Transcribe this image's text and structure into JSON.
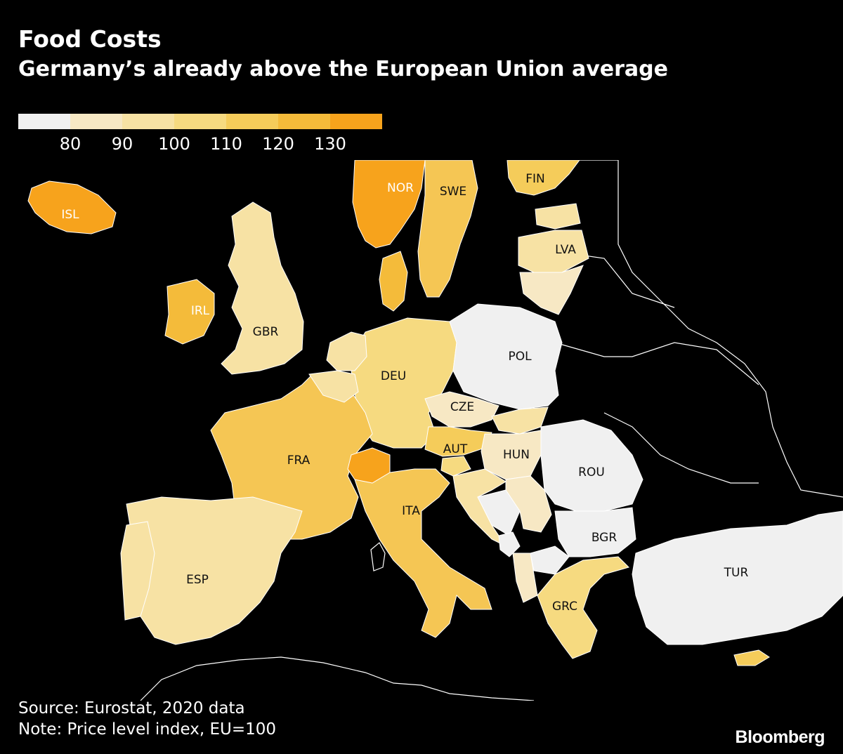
{
  "title": "Food Costs",
  "subtitle": "Germany’s already above the European Union average",
  "legend": {
    "ticks": [
      "80",
      "90",
      "100",
      "110",
      "120",
      "130"
    ],
    "colors": [
      "#f0f0f0",
      "#f7e8c4",
      "#f7e2a4",
      "#f6da80",
      "#f5cc5a",
      "#f4bb3a",
      "#f7a31c"
    ]
  },
  "countries": [
    {
      "code": "ISL",
      "label": "ISL",
      "color": "#f7a31c"
    },
    {
      "code": "NOR",
      "label": "NOR",
      "color": "#f7a31c"
    },
    {
      "code": "SWE",
      "label": "SWE",
      "color": "#f5c654"
    },
    {
      "code": "FIN",
      "label": "FIN",
      "color": "#f5cc5a"
    },
    {
      "code": "LVA",
      "label": "LVA",
      "color": "#f7e2a4"
    },
    {
      "code": "IRL",
      "label": "IRL",
      "color": "#f4bb3a"
    },
    {
      "code": "GBR",
      "label": "GBR",
      "color": "#f7e2a4"
    },
    {
      "code": "DEU",
      "label": "DEU",
      "color": "#f6da80"
    },
    {
      "code": "POL",
      "label": "POL",
      "color": "#f0f0f0"
    },
    {
      "code": "CZE",
      "label": "CZE",
      "color": "#f7e8c4"
    },
    {
      "code": "AUT",
      "label": "AUT",
      "color": "#f5cc5a"
    },
    {
      "code": "HUN",
      "label": "HUN",
      "color": "#f7e8c4"
    },
    {
      "code": "FRA",
      "label": "FRA",
      "color": "#f5c654"
    },
    {
      "code": "ROU",
      "label": "ROU",
      "color": "#f0f0f0"
    },
    {
      "code": "ITA",
      "label": "ITA",
      "color": "#f5c654"
    },
    {
      "code": "BGR",
      "label": "BGR",
      "color": "#f0f0f0"
    },
    {
      "code": "ESP",
      "label": "ESP",
      "color": "#f7e2a4"
    },
    {
      "code": "TUR",
      "label": "TUR",
      "color": "#f0f0f0"
    },
    {
      "code": "GRC",
      "label": "GRC",
      "color": "#f6da80"
    },
    {
      "code": "CHE",
      "label": "",
      "color": "#f7a31c"
    },
    {
      "code": "BEL",
      "label": "",
      "color": "#f7e2a4"
    },
    {
      "code": "NLD",
      "label": "",
      "color": "#f7e2a4"
    },
    {
      "code": "DNK",
      "label": "",
      "color": "#f4bb3a"
    },
    {
      "code": "PRT",
      "label": "",
      "color": "#f7e2a4"
    },
    {
      "code": "LTU",
      "label": "",
      "color": "#f7e8c4"
    },
    {
      "code": "EST",
      "label": "",
      "color": "#f7e2a4"
    },
    {
      "code": "SVK",
      "label": "",
      "color": "#f7e2a4"
    },
    {
      "code": "SVN",
      "label": "",
      "color": "#f6da80"
    },
    {
      "code": "HRV",
      "label": "",
      "color": "#f7e2a4"
    },
    {
      "code": "SRB",
      "label": "",
      "color": "#f7e8c4"
    },
    {
      "code": "BIH",
      "label": "",
      "color": "#f0f0f0"
    },
    {
      "code": "MNE",
      "label": "",
      "color": "#f0f0f0"
    },
    {
      "code": "MKD",
      "label": "",
      "color": "#f0f0f0"
    },
    {
      "code": "ALB",
      "label": "",
      "color": "#f7e8c4"
    },
    {
      "code": "CYP",
      "label": "",
      "color": "#f5cc5a"
    }
  ],
  "footer": {
    "source": "Source: Eurostat, 2020 data",
    "note": "Note: Price level index, EU=100"
  },
  "brand": "Bloomberg"
}
